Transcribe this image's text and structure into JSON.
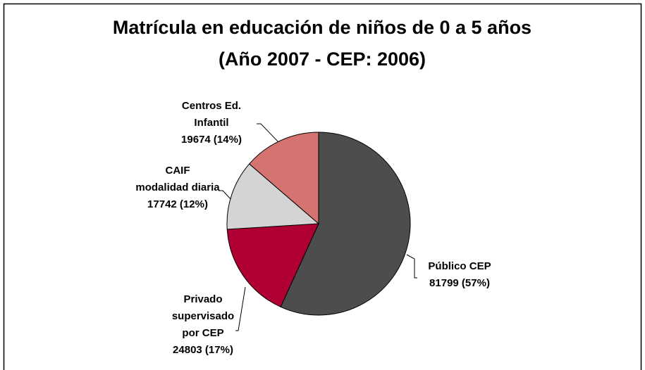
{
  "chart_data": {
    "type": "pie",
    "title": "Matrícula en educación de niños de 0 a 5 años\n(Año 2007 - CEP: 2006)",
    "categories": [
      "Público CEP",
      "Privado\nsupervisado\npor CEP",
      "CAIF\nmodalidad diaria",
      "Centros Ed.\nInfantil"
    ],
    "values": [
      81799,
      24803,
      17742,
      19674
    ],
    "value_labels": [
      "81799 (57%)",
      "24803 (17%)",
      "17742 (12%)",
      "19674 (14%)"
    ],
    "colors": [
      "#4d4d4d",
      "#b00033",
      "#d4d4d4",
      "#d47370"
    ]
  }
}
